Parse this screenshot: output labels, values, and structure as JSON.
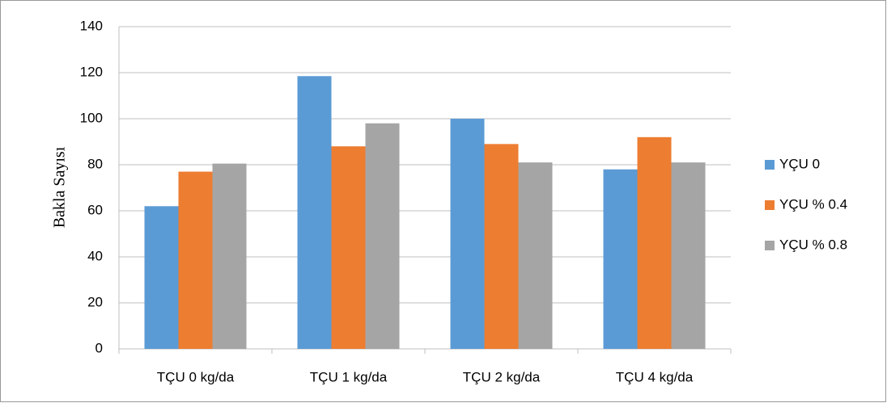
{
  "chart_data": {
    "type": "bar",
    "y_label": "Bakla Sayısı",
    "categories": [
      "TÇU 0 kg/da",
      "TÇU 1 kg/da",
      "TÇU 2 kg/da",
      "TÇU 4 kg/da"
    ],
    "series": [
      {
        "name": "YÇU 0",
        "color": "#5b9bd5",
        "values": [
          62,
          118.5,
          100,
          78
        ]
      },
      {
        "name": "YÇU % 0.4",
        "color": "#ed7d31",
        "values": [
          77,
          88,
          89,
          92
        ]
      },
      {
        "name": "YÇU % 0.8",
        "color": "#a5a5a5",
        "values": [
          80.5,
          98,
          81,
          81
        ]
      }
    ],
    "ylim": [
      0,
      140
    ],
    "yticks": [
      0,
      20,
      40,
      60,
      80,
      100,
      120,
      140
    ],
    "grid": true,
    "legend": "right"
  }
}
